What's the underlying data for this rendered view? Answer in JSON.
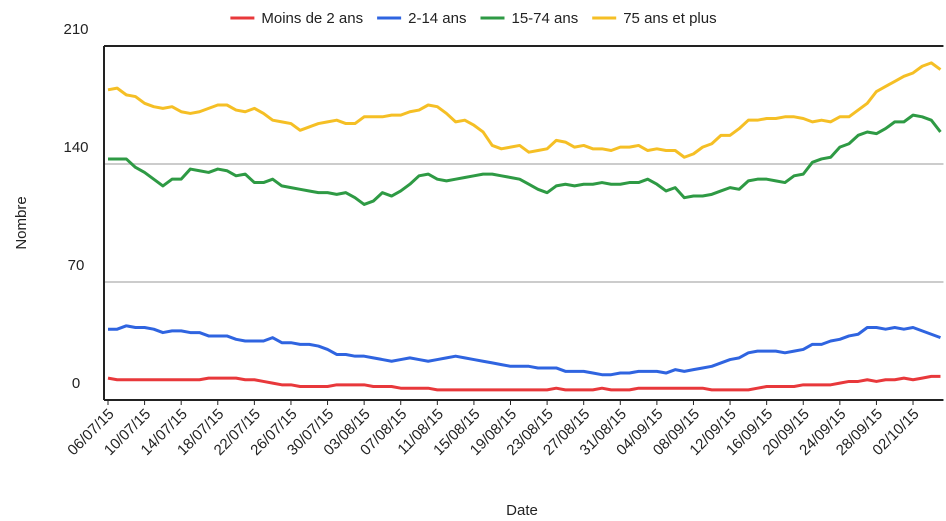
{
  "chart_data": {
    "type": "line",
    "x_label": "Date",
    "y_label": "Nombre",
    "categories": [
      "06/07/15",
      null,
      null,
      null,
      "10/07/15",
      null,
      null,
      null,
      "14/07/15",
      null,
      null,
      null,
      "18/07/15",
      null,
      null,
      null,
      "22/07/15",
      null,
      null,
      null,
      "26/07/15",
      null,
      null,
      null,
      "30/07/15",
      null,
      null,
      null,
      "03/08/15",
      null,
      null,
      null,
      "07/08/15",
      null,
      null,
      null,
      "11/08/15",
      null,
      null,
      null,
      "15/08/15",
      null,
      null,
      null,
      "19/08/15",
      null,
      null,
      null,
      "23/08/15",
      null,
      null,
      null,
      "27/08/15",
      null,
      null,
      null,
      "31/08/15",
      null,
      null,
      null,
      "04/09/15",
      null,
      null,
      null,
      "08/09/15",
      null,
      null,
      null,
      "12/09/15",
      null,
      null,
      null,
      "16/09/15",
      null,
      null,
      null,
      "20/09/15",
      null,
      null,
      null,
      "24/09/15",
      null,
      null,
      null,
      "28/09/15",
      null,
      null,
      null,
      "02/10/15",
      null,
      null,
      null
    ],
    "series": [
      {
        "name": "Moins de 2 ans",
        "color": "#e8383b",
        "values": [
          13,
          12,
          12,
          12,
          12,
          12,
          12,
          12,
          12,
          12,
          12,
          13,
          13,
          13,
          13,
          12,
          12,
          11,
          10,
          9,
          9,
          8,
          8,
          8,
          8,
          9,
          9,
          9,
          9,
          8,
          8,
          8,
          7,
          7,
          7,
          7,
          6,
          6,
          6,
          6,
          6,
          6,
          6,
          6,
          6,
          6,
          6,
          6,
          6,
          7,
          6,
          6,
          6,
          6,
          7,
          6,
          6,
          6,
          7,
          7,
          7,
          7,
          7,
          7,
          7,
          7,
          6,
          6,
          6,
          6,
          6,
          7,
          8,
          8,
          8,
          8,
          9,
          9,
          9,
          9,
          10,
          11,
          11,
          12,
          11,
          12,
          12,
          13,
          12,
          13,
          14,
          14
        ]
      },
      {
        "name": "2-14 ans",
        "color": "#2f64e0",
        "values": [
          42,
          42,
          44,
          43,
          43,
          42,
          40,
          41,
          41,
          40,
          40,
          38,
          38,
          38,
          36,
          35,
          35,
          35,
          37,
          34,
          34,
          33,
          33,
          32,
          30,
          27,
          27,
          26,
          26,
          25,
          24,
          23,
          24,
          25,
          24,
          23,
          24,
          25,
          26,
          25,
          24,
          23,
          22,
          21,
          20,
          20,
          20,
          19,
          19,
          19,
          17,
          17,
          17,
          16,
          15,
          15,
          16,
          16,
          17,
          17,
          17,
          16,
          18,
          17,
          18,
          19,
          20,
          22,
          24,
          25,
          28,
          29,
          29,
          29,
          28,
          29,
          30,
          33,
          33,
          35,
          36,
          38,
          39,
          43,
          43,
          42,
          43,
          42,
          43,
          41,
          39,
          37
        ]
      },
      {
        "name": "15-74 ans",
        "color": "#2e9a44",
        "values": [
          143,
          143,
          143,
          138,
          135,
          131,
          127,
          131,
          131,
          137,
          136,
          135,
          137,
          136,
          133,
          134,
          129,
          129,
          131,
          127,
          126,
          125,
          124,
          123,
          123,
          122,
          123,
          120,
          116,
          118,
          123,
          121,
          124,
          128,
          133,
          134,
          131,
          130,
          131,
          132,
          133,
          134,
          134,
          133,
          132,
          131,
          128,
          125,
          123,
          127,
          128,
          127,
          128,
          128,
          129,
          128,
          128,
          129,
          129,
          131,
          128,
          124,
          126,
          120,
          121,
          121,
          122,
          124,
          126,
          125,
          130,
          131,
          131,
          130,
          129,
          133,
          134,
          141,
          143,
          144,
          150,
          152,
          157,
          159,
          158,
          161,
          165,
          165,
          169,
          168,
          166,
          159
        ]
      },
      {
        "name": "75 ans et plus",
        "color": "#f5bf25",
        "values": [
          184,
          185,
          181,
          180,
          176,
          174,
          173,
          174,
          171,
          170,
          171,
          173,
          175,
          175,
          172,
          171,
          173,
          170,
          166,
          165,
          164,
          160,
          162,
          164,
          165,
          166,
          164,
          164,
          168,
          168,
          168,
          169,
          169,
          171,
          172,
          175,
          174,
          170,
          165,
          166,
          163,
          159,
          151,
          149,
          150,
          151,
          147,
          148,
          149,
          154,
          153,
          150,
          151,
          149,
          149,
          148,
          150,
          150,
          151,
          148,
          149,
          148,
          148,
          144,
          146,
          150,
          152,
          157,
          157,
          161,
          166,
          166,
          167,
          167,
          168,
          168,
          167,
          165,
          166,
          165,
          168,
          168,
          172,
          176,
          183,
          186,
          189,
          192,
          194,
          198,
          200,
          196
        ]
      }
    ],
    "ylim": [
      0,
      210
    ],
    "yticks": [
      0,
      70,
      140,
      210
    ],
    "grid": true
  }
}
